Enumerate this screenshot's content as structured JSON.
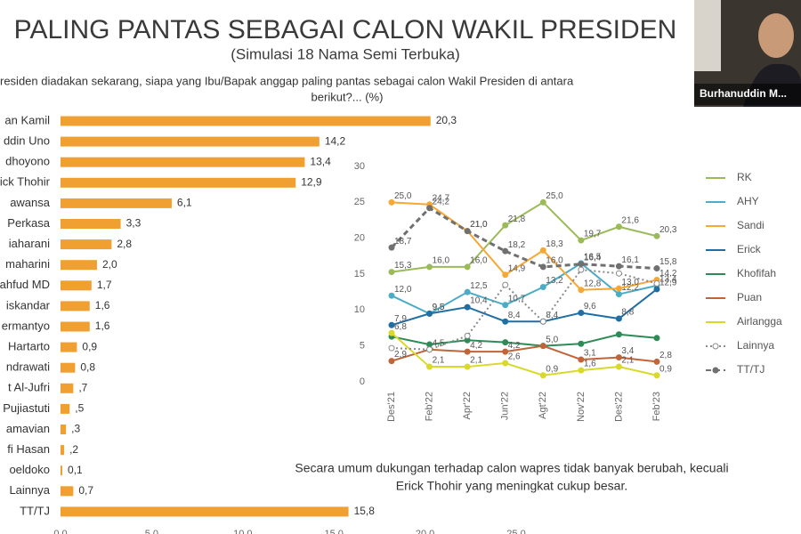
{
  "video": {
    "name": "Burhanuddin M..."
  },
  "chart_data": [
    {
      "type": "bar",
      "title": "PALING PANTAS SEBAGAI CALON WAKIL PRESIDEN",
      "subtitle": "(Simulasi 18 Nama Semi Terbuka)",
      "question": [
        "residen diadakan sekarang, siapa yang Ibu/Bapak anggap paling pantas sebagai calon Wakil Presiden di antara",
        "berikut?... (%)"
      ],
      "categories": [
        "an Kamil",
        "ddin Uno",
        "dhoyono",
        "ick Thohir",
        "awansa",
        "Perkasa",
        "iaharani",
        "maharini",
        "ahfud MD",
        "iskandar",
        "ermantyo",
        "Hartarto",
        "ndrawati",
        "t Al-Jufri",
        "Pujiastuti",
        "amavian",
        "fi Hasan",
        "oeldoko",
        "Lainnya",
        "TT/TJ"
      ],
      "values": [
        20.3,
        14.2,
        13.4,
        12.9,
        6.1,
        3.3,
        2.8,
        2.0,
        1.7,
        1.6,
        1.6,
        0.9,
        0.8,
        0.7,
        0.5,
        0.3,
        0.2,
        0.1,
        0.7,
        15.8
      ],
      "value_labels": [
        "20,3",
        "14,2",
        "13,4",
        "12,9",
        "6,1",
        "3,3",
        "2,8",
        "2,0",
        "1,7",
        "1,6",
        "1,6",
        "0,9",
        "0,8",
        ",7",
        ",5",
        ",3",
        ",2",
        "0,1",
        "0,7",
        "15,8"
      ],
      "color": "#f0a030",
      "xlim": [
        0,
        25
      ],
      "xticks": [
        {
          "value": 0,
          "label": "0,0"
        },
        {
          "value": 5,
          "label": "5,0"
        },
        {
          "value": 10,
          "label": "10,0"
        },
        {
          "value": 15,
          "label": "15,0"
        },
        {
          "value": 20,
          "label": "20,0"
        },
        {
          "value": 25,
          "label": "25,0"
        }
      ]
    },
    {
      "type": "line",
      "categories": [
        "Des'21",
        "Feb'22",
        "Apr'22",
        "Jun'22",
        "Agt'22",
        "Nov'22",
        "Des'22",
        "Feb'23"
      ],
      "ylim": [
        0,
        30
      ],
      "yticks": [
        0,
        5,
        10,
        15,
        20,
        25,
        30
      ],
      "series": [
        {
          "name": "RK",
          "color": "#9bbb59",
          "values": [
            15.3,
            16.0,
            16.0,
            21.8,
            25.0,
            19.7,
            21.6,
            20.3
          ],
          "value_labels": [
            "15,3",
            "16,0",
            "16,0",
            "21,8",
            "25,0",
            "19,7",
            "21,6",
            "20,3"
          ]
        },
        {
          "name": "AHY",
          "color": "#4bacc6",
          "values": [
            12.0,
            9.5,
            12.5,
            10.7,
            13.2,
            16.5,
            12.2,
            13.4
          ],
          "value_labels": [
            "12,0",
            "9,5",
            "12,5",
            "10,7",
            "13,2",
            "16,5",
            "12,2",
            "13,4"
          ]
        },
        {
          "name": "Sandi",
          "color": "#f7a734",
          "values": [
            25.0,
            24.7,
            21.0,
            14.9,
            18.3,
            12.8,
            13.0,
            14.2
          ],
          "value_labels": [
            "25,0",
            "24,7",
            "21,0",
            "14,9",
            "18,3",
            "12,8",
            "13,0",
            "14,2"
          ]
        },
        {
          "name": "Erick",
          "color": "#1f6fa5",
          "values": [
            7.9,
            9.5,
            10.4,
            8.4,
            8.4,
            9.6,
            8.8,
            12.9
          ],
          "value_labels": [
            "7,9",
            "9,5",
            "10,4",
            "8,4",
            "8,4",
            "9,6",
            "8,8",
            "12,9"
          ]
        },
        {
          "name": "Khofifah",
          "color": "#2e8b57",
          "values": [
            6.3,
            5.2,
            5.8,
            5.5,
            5.0,
            5.3,
            6.6,
            6.1
          ]
        },
        {
          "name": "Puan",
          "color": "#c0653a",
          "values": [
            2.9,
            4.5,
            4.2,
            4.2,
            5.0,
            3.1,
            3.4,
            2.8
          ],
          "value_labels": [
            "2,9",
            "4,5",
            "4,2",
            "4,2",
            "5,0",
            "3,1",
            "3,4",
            "2,8"
          ]
        },
        {
          "name": "Airlangga",
          "color": "#d9d92a",
          "values": [
            6.8,
            2.1,
            2.1,
            2.6,
            0.9,
            1.6,
            2.1,
            0.9
          ],
          "value_labels": [
            "6,8",
            "2,1",
            "2,1",
            "2,6",
            "0,9",
            "1,6",
            "2,1",
            "0,9"
          ]
        },
        {
          "name": "Lainnya",
          "color": "#8a8a8a",
          "dash": "dotted",
          "marker": "open",
          "values": [
            4.7,
            4.5,
            6.4,
            13.5,
            8.4,
            15.6,
            15.1,
            13.7
          ]
        },
        {
          "name": "TT/TJ",
          "color": "#707070",
          "dash": "dashed",
          "values": [
            18.7,
            24.2,
            21.0,
            18.2,
            16.0,
            16.4,
            16.1,
            15.8
          ],
          "value_labels": [
            "18,7",
            "24,2",
            "21,0",
            "18,2",
            "16,0",
            "16,4",
            "16,1",
            "15,8"
          ]
        }
      ],
      "annotation": [
        "Secara umum dukungan terhadap calon wapres tidak banyak berubah, kecuali",
        "Erick Thohir yang meningkat cukup besar."
      ]
    }
  ]
}
